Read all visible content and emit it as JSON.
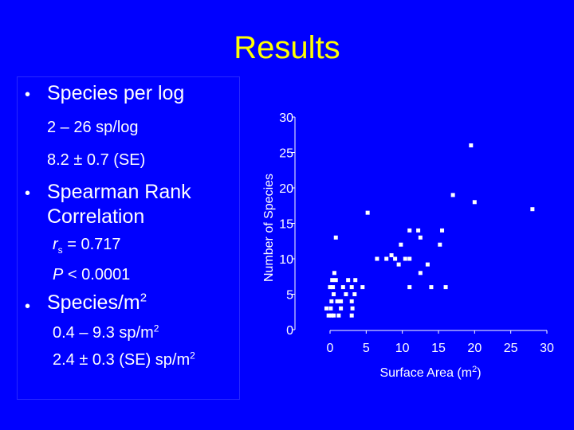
{
  "slide": {
    "title": "Results"
  },
  "left": {
    "species_per_log": "Species per log",
    "sp_log_range": "2 – 26 sp/log",
    "sp_log_mean": "8.2 ± 0.7 (SE)",
    "spearman_line1": "Spearman Rank",
    "spearman_line2": "Correlation",
    "rs_sym": "r",
    "rs_sub": "s",
    "rs_val": " = 0.717",
    "p_sym": "P",
    "p_val": " < 0.0001",
    "species_m2": "Species/m",
    "species_m2_exp": "2",
    "density_range": "0.4 – 9.3 sp/m",
    "density_range_exp": "2",
    "density_mean": "2.4 ± 0.3 (SE) sp/m",
    "density_mean_exp": "2"
  },
  "colors": {
    "background": "#0000FF",
    "title": "#FFFF00",
    "text": "#FFFFFF"
  },
  "chart_data": {
    "type": "scatter",
    "xlabel": "Surface Area (m",
    "xlabel_exp": "2",
    "xlabel_close": ")",
    "ylabel": "Number of Species",
    "xlim": [
      0,
      30
    ],
    "ylim": [
      0,
      30
    ],
    "xticks": [
      0,
      5,
      10,
      15,
      20,
      25,
      30
    ],
    "yticks": [
      0,
      5,
      10,
      15,
      20,
      25,
      30
    ],
    "points": [
      [
        19.5,
        26
      ],
      [
        17,
        19
      ],
      [
        20,
        18
      ],
      [
        28,
        17
      ],
      [
        5.2,
        16.5
      ],
      [
        11,
        14
      ],
      [
        12.2,
        14
      ],
      [
        15.5,
        14
      ],
      [
        0.8,
        13
      ],
      [
        12.5,
        13
      ],
      [
        9.8,
        12
      ],
      [
        8.5,
        10.5
      ],
      [
        15.2,
        12
      ],
      [
        6.5,
        10
      ],
      [
        7.8,
        10
      ],
      [
        9,
        10
      ],
      [
        10.4,
        10
      ],
      [
        11,
        10
      ],
      [
        9.5,
        9.2
      ],
      [
        13.5,
        9.2
      ],
      [
        12.5,
        8
      ],
      [
        0.6,
        8
      ],
      [
        0.3,
        7
      ],
      [
        0.8,
        7
      ],
      [
        2.5,
        7
      ],
      [
        3.5,
        7
      ],
      [
        0,
        6
      ],
      [
        0.4,
        6
      ],
      [
        1.8,
        6
      ],
      [
        3,
        6
      ],
      [
        4.5,
        6
      ],
      [
        11,
        6
      ],
      [
        14,
        6
      ],
      [
        16,
        6
      ],
      [
        0.5,
        5
      ],
      [
        3.4,
        5
      ],
      [
        2.2,
        5
      ],
      [
        0.2,
        4
      ],
      [
        1,
        4
      ],
      [
        1.5,
        4
      ],
      [
        3,
        4
      ],
      [
        -0.5,
        3
      ],
      [
        0.1,
        3
      ],
      [
        1.5,
        3
      ],
      [
        3.1,
        3
      ],
      [
        0.2,
        2
      ],
      [
        0.5,
        2
      ],
      [
        1.2,
        2
      ],
      [
        3,
        2
      ],
      [
        -0.2,
        2
      ]
    ]
  }
}
